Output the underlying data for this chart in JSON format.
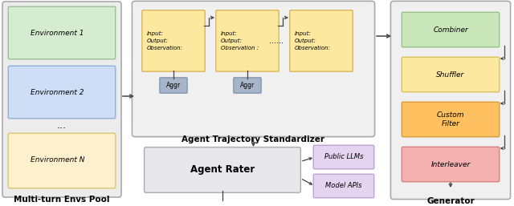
{
  "bg_color": "#ffffff",
  "env_pool": {
    "title": "Multi-turn Envs Pool",
    "outer_bg": "#ececec",
    "outer_edge": "#aaaaaa",
    "env1": {
      "label": "Environment 1",
      "bg": "#d5ecd0",
      "edge": "#90bc88"
    },
    "env2": {
      "label": "Environment 2",
      "bg": "#ccddf5",
      "edge": "#88aad4"
    },
    "dots": "...",
    "envN": {
      "label": "Environment N",
      "bg": "#fdf0cc",
      "edge": "#d8c060"
    }
  },
  "standardizer": {
    "title": "Agent Trajectory Standardizer",
    "outer_bg": "#f0f0f0",
    "outer_edge": "#aaaaaa",
    "step_color": "#fde8a0",
    "step_edge": "#d4a840",
    "aggr_color": "#a8b4c8",
    "aggr_edge": "#7090a8",
    "dots": "......"
  },
  "rater": {
    "label": "Agent Rater",
    "bg": "#e8e8ec",
    "edge": "#aaaaaa",
    "llms_label": "Public LLMs",
    "llms_bg": "#e4d4f0",
    "llms_edge": "#b090c8",
    "apis_label": "Model APIs",
    "apis_bg": "#e4d4f0",
    "apis_edge": "#b090c8"
  },
  "generator": {
    "title": "Generator",
    "outer_bg": "#f0f0f0",
    "outer_edge": "#aaaaaa",
    "combiner": {
      "label": "Combiner",
      "bg": "#c8e6b8",
      "edge": "#88b870"
    },
    "shuffler": {
      "label": "Shuffler",
      "bg": "#fde8a0",
      "edge": "#d4b840"
    },
    "filter": {
      "label": "Custom\nFilter",
      "bg": "#ffc060",
      "edge": "#d49020"
    },
    "interleaver": {
      "label": "Interleaver",
      "bg": "#f5b0b0",
      "edge": "#d07070"
    }
  },
  "arrow_color": "#444444",
  "font_size_label": 6.5,
  "font_size_title": 7.5,
  "font_size_step": 5.0
}
